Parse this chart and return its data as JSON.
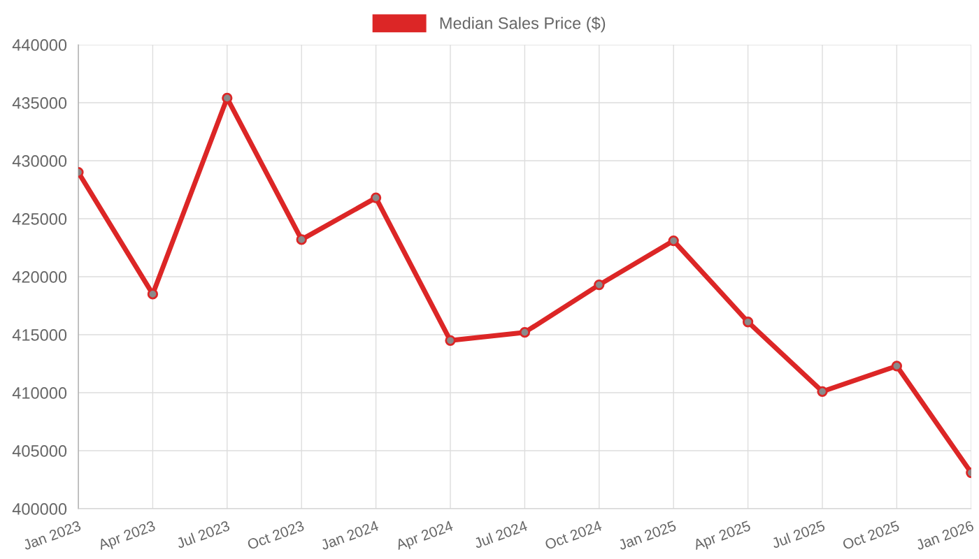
{
  "chart_data": {
    "type": "line",
    "categories": [
      "Jan 2023",
      "Apr 2023",
      "Jul 2023",
      "Oct 2023",
      "Jan 2024",
      "Apr 2024",
      "Jul 2024",
      "Oct 2024",
      "Jan 2025",
      "Apr 2025",
      "Jul 2025",
      "Oct 2025",
      "Jan 2026"
    ],
    "series": [
      {
        "name": "Median Sales Price ($)",
        "color": "#dc2626",
        "values": [
          429000,
          418500,
          435400,
          423200,
          426800,
          414500,
          415200,
          419300,
          423100,
          416100,
          410100,
          412300,
          403100
        ]
      }
    ],
    "ylim": [
      400000,
      440000
    ],
    "yticks": [
      400000,
      405000,
      410000,
      415000,
      420000,
      425000,
      430000,
      435000,
      440000
    ],
    "grid": true,
    "legend": "top",
    "marker": "circle",
    "line_style": "solid"
  }
}
